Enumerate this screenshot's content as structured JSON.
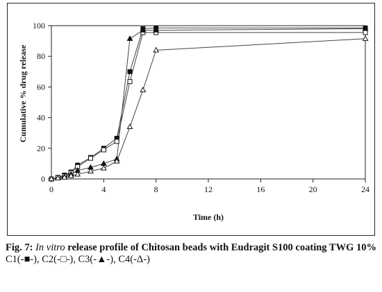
{
  "chart_data": {
    "type": "line",
    "xlabel": "Time (h)",
    "ylabel": "Cumulative % drug release",
    "xlim": [
      0,
      24
    ],
    "ylim": [
      0,
      100
    ],
    "xticks": [
      0,
      4,
      8,
      12,
      16,
      20,
      24
    ],
    "yticks": [
      0,
      20,
      40,
      60,
      80,
      100
    ],
    "grid": false,
    "legend": "none",
    "x": [
      0,
      0.5,
      1,
      1.5,
      2,
      3,
      4,
      5,
      6,
      7,
      8,
      24
    ],
    "series": [
      {
        "name": "C1",
        "marker": "filled-square",
        "values": [
          0,
          1,
          2.5,
          4.5,
          9,
          14,
          20,
          26.5,
          70,
          98,
          98.5,
          98.5
        ]
      },
      {
        "name": "C2",
        "marker": "open-square",
        "values": [
          0,
          1,
          2,
          4,
          8,
          13.5,
          19,
          24.5,
          63.5,
          95.5,
          95.5,
          95.5
        ]
      },
      {
        "name": "C3",
        "marker": "filled-triangle",
        "values": [
          0,
          0.5,
          1.5,
          3,
          5.5,
          7.5,
          10,
          13,
          91.5,
          97,
          97,
          98
        ]
      },
      {
        "name": "C4",
        "marker": "open-triangle",
        "values": [
          0,
          0.5,
          1,
          2,
          3,
          5,
          7,
          11.5,
          34,
          58,
          84,
          91.5
        ]
      }
    ]
  },
  "caption": {
    "fig_label": "Fig. 7: ",
    "italic_part": "In vitro",
    "rest": " release profile of Chitosan beads with Eudragit S100 coating TWG 10%",
    "legend_line": "C1(-■-), C2(-□-), C3(-▲-), C4(-Δ-)"
  }
}
